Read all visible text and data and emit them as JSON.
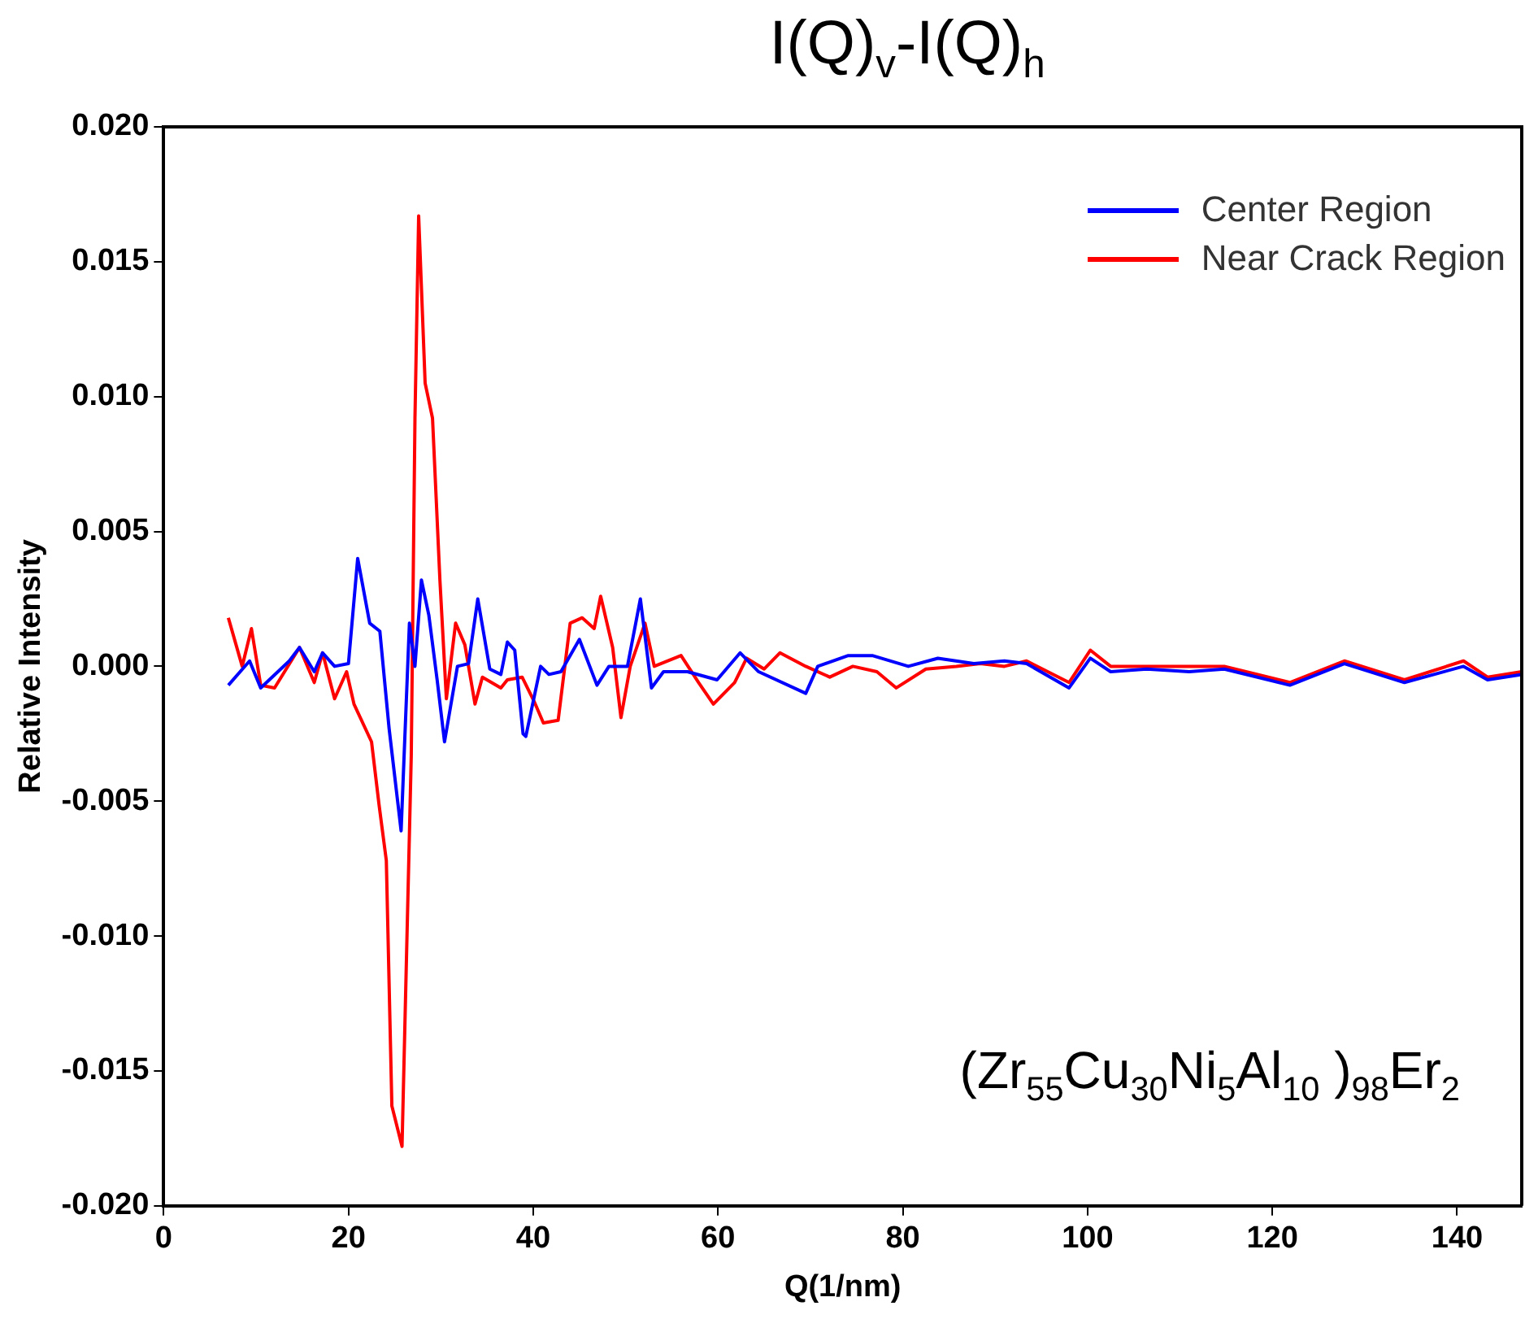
{
  "chart_data": {
    "type": "line",
    "title": "I(Q)$_{v}$-I(Q)$_{h}$",
    "xlabel": "Q(1/nm)",
    "ylabel": "Relative Intensity",
    "annotations": [
      "(Zr$_{55}$Cu$_{30}$Ni$_{5}$Al$_{10}$ )$_{98}$Er$_{2}$"
    ],
    "xlim": [
      0,
      147
    ],
    "xticks": [
      0,
      20,
      40,
      60,
      80,
      100,
      120,
      140
    ],
    "ylim": [
      -0.02,
      0.02
    ],
    "yticks": [
      {
        "value": -0.02,
        "label": "-0.020"
      },
      {
        "value": -0.015,
        "label": "-0.015"
      },
      {
        "value": -0.01,
        "label": "-0.010"
      },
      {
        "value": -0.005,
        "label": "-0.005"
      },
      {
        "value": 0,
        "label": "0.000"
      },
      {
        "value": 0.005,
        "label": "0.005"
      },
      {
        "value": 0.01,
        "label": "0.010"
      },
      {
        "value": 0.015,
        "label": "0.015"
      },
      {
        "value": 0.02,
        "label": "0.020"
      }
    ],
    "grid": false,
    "legend": "top right",
    "marker": "none",
    "line_style": "solid",
    "series": [
      {
        "name": "Center Region",
        "color": "#0000ff",
        "x": [
          7,
          9.3,
          10.5,
          13.6,
          14.7,
          16.3,
          17.2,
          18.5,
          20,
          21,
          22.3,
          23.4,
          24.4,
          25.7,
          26.6,
          27.2,
          27.9,
          28.7,
          29.6,
          30.4,
          31.8,
          33,
          34,
          35.3,
          36.5,
          37.2,
          38,
          38.9,
          39.2,
          40.8,
          41.7,
          43,
          45,
          46.9,
          48.2,
          50.2,
          51.6,
          52.8,
          54.1,
          56.7,
          59.9,
          62.4,
          64.4,
          69.5,
          70.8,
          74.1,
          76.7,
          80.6,
          83.8,
          87.7,
          91,
          93.4,
          98,
          100.3,
          102.5,
          106.4,
          111,
          114.8,
          121.9,
          127.8,
          134.3,
          140.7,
          143.3,
          147
        ],
        "values": [
          -0.0007,
          0.0002,
          -0.0008,
          0.0002,
          0.0007,
          -0.0002,
          0.0005,
          0,
          0.0001,
          0.004,
          0.0016,
          0.0013,
          -0.0023,
          -0.0061,
          0.0016,
          0,
          0.0032,
          0.0019,
          -0.0005,
          -0.0028,
          0,
          0.0001,
          0.0025,
          -0.0001,
          -0.0003,
          0.0009,
          0.0006,
          -0.0025,
          -0.0026,
          0,
          -0.0003,
          -0.0002,
          0.001,
          -0.0007,
          0,
          0,
          0.0025,
          -0.0008,
          -0.0002,
          -0.0002,
          -0.0005,
          0.0005,
          -0.0002,
          -0.001,
          0,
          0.0004,
          0.0004,
          0,
          0.0003,
          0.0001,
          0.0002,
          0.0001,
          -0.0008,
          0.0003,
          -0.0002,
          -0.0001,
          -0.0002,
          -0.0001,
          -0.0007,
          0.0001,
          -0.0006,
          0,
          -0.0005,
          -0.0003
        ]
      },
      {
        "name": "Near Crack Region",
        "color": "#ff0000",
        "x": [
          7,
          8.5,
          9.5,
          10.5,
          12,
          14.7,
          16.3,
          17.2,
          18.5,
          19.8,
          20.6,
          22.5,
          23.3,
          24.1,
          24.7,
          25.8,
          26.8,
          27.2,
          27.6,
          28.3,
          29.1,
          29.9,
          30.6,
          31.6,
          32.6,
          33.7,
          34.5,
          36.5,
          37.2,
          38.8,
          40.1,
          41.1,
          42.7,
          44,
          45.3,
          46.6,
          47.3,
          48.6,
          49.5,
          50.5,
          52.1,
          53.1,
          56,
          57.9,
          59.5,
          61.8,
          63.1,
          65,
          66.7,
          69.5,
          72.1,
          74.6,
          77.2,
          79.3,
          82.5,
          85.8,
          88.4,
          91,
          93.4,
          98,
          100.3,
          102.5,
          106.4,
          111,
          114.8,
          121.9,
          127.8,
          134.3,
          140.7,
          143.3,
          147
        ],
        "values": [
          0.0018,
          0,
          0.0014,
          -0.0007,
          -0.0008,
          0.0007,
          -0.0006,
          0.0005,
          -0.0012,
          -0.0002,
          -0.0014,
          -0.0028,
          -0.0051,
          -0.0072,
          -0.0163,
          -0.0178,
          -0.0033,
          0.0092,
          0.0167,
          0.0105,
          0.0092,
          0.0032,
          -0.0012,
          0.0016,
          0.0008,
          -0.0014,
          -0.0004,
          -0.0008,
          -0.0005,
          -0.0004,
          -0.0013,
          -0.0021,
          -0.002,
          0.0016,
          0.0018,
          0.0014,
          0.0026,
          0.0007,
          -0.0019,
          0,
          0.0016,
          0,
          0.0004,
          -0.0006,
          -0.0014,
          -0.0006,
          0.0003,
          -0.0001,
          0.0005,
          0,
          -0.0004,
          0,
          -0.0002,
          -0.0008,
          -0.0001,
          0,
          0.0001,
          0,
          0.0002,
          -0.0006,
          0.0006,
          0,
          0,
          0,
          0,
          -0.0006,
          0.0002,
          -0.0005,
          0.0002,
          -0.0004,
          -0.0002
        ]
      }
    ]
  }
}
